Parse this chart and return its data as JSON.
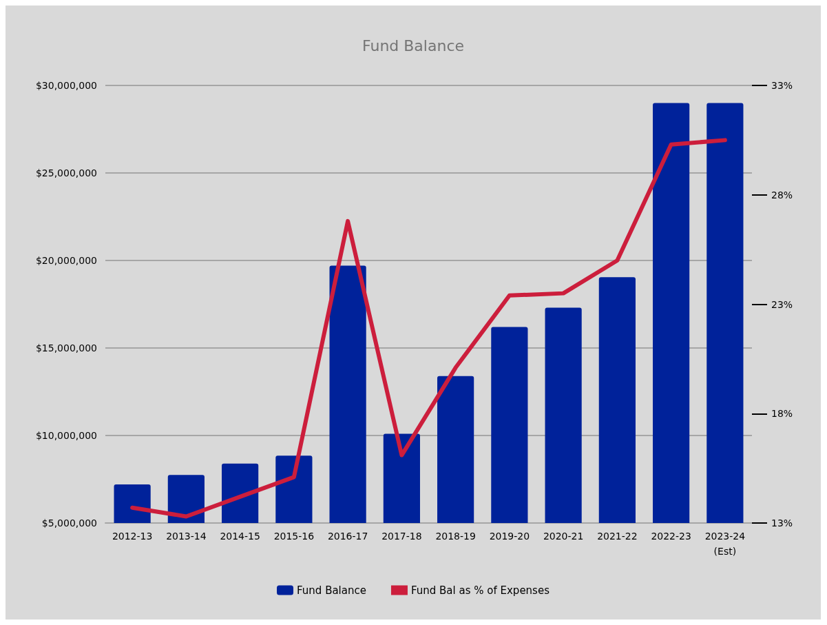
{
  "chart_data": {
    "type": "bar",
    "title": "Fund Balance",
    "categories": [
      "2012-13",
      "2013-14",
      "2014-15",
      "2015-16",
      "2016-17",
      "2017-18",
      "2018-19",
      "2019-20",
      "2020-21",
      "2021-22",
      "2022-23",
      "2023-24\n(Est)"
    ],
    "series": [
      {
        "name": "Fund Balance",
        "color": "#00229a",
        "values": [
          7200000,
          7750000,
          8400000,
          8850000,
          19700000,
          10100000,
          13400000,
          16200000,
          17300000,
          19050000,
          29000000,
          29000000
        ]
      },
      {
        "name": "Fund Bal as % of Expenses",
        "type": "line",
        "axis": "y2",
        "color": "#cc1e3c",
        "values": [
          13.7,
          13.3,
          14.2,
          15.1,
          26.8,
          16.1,
          20.1,
          23.4,
          23.5,
          25.0,
          30.3,
          30.5
        ]
      }
    ],
    "ylim": [
      5000000,
      30000000
    ],
    "yticks": [
      {
        "value": 5000000,
        "label": "$5,000,000"
      },
      {
        "value": 10000000,
        "label": "$10,000,000"
      },
      {
        "value": 15000000,
        "label": "$15,000,000"
      },
      {
        "value": 20000000,
        "label": "$20,000,000"
      },
      {
        "value": 25000000,
        "label": "$25,000,000"
      },
      {
        "value": 30000000,
        "label": "$30,000,000"
      }
    ],
    "y2lim": [
      13,
      33
    ],
    "y2ticks": [
      {
        "value": 13,
        "label": "13%"
      },
      {
        "value": 18,
        "label": "18%"
      },
      {
        "value": 23,
        "label": "23%"
      },
      {
        "value": 28,
        "label": "28%"
      },
      {
        "value": 33,
        "label": "33%"
      }
    ],
    "grid": "y",
    "legend": "bottom",
    "marker": "none",
    "line_style": "solid"
  }
}
